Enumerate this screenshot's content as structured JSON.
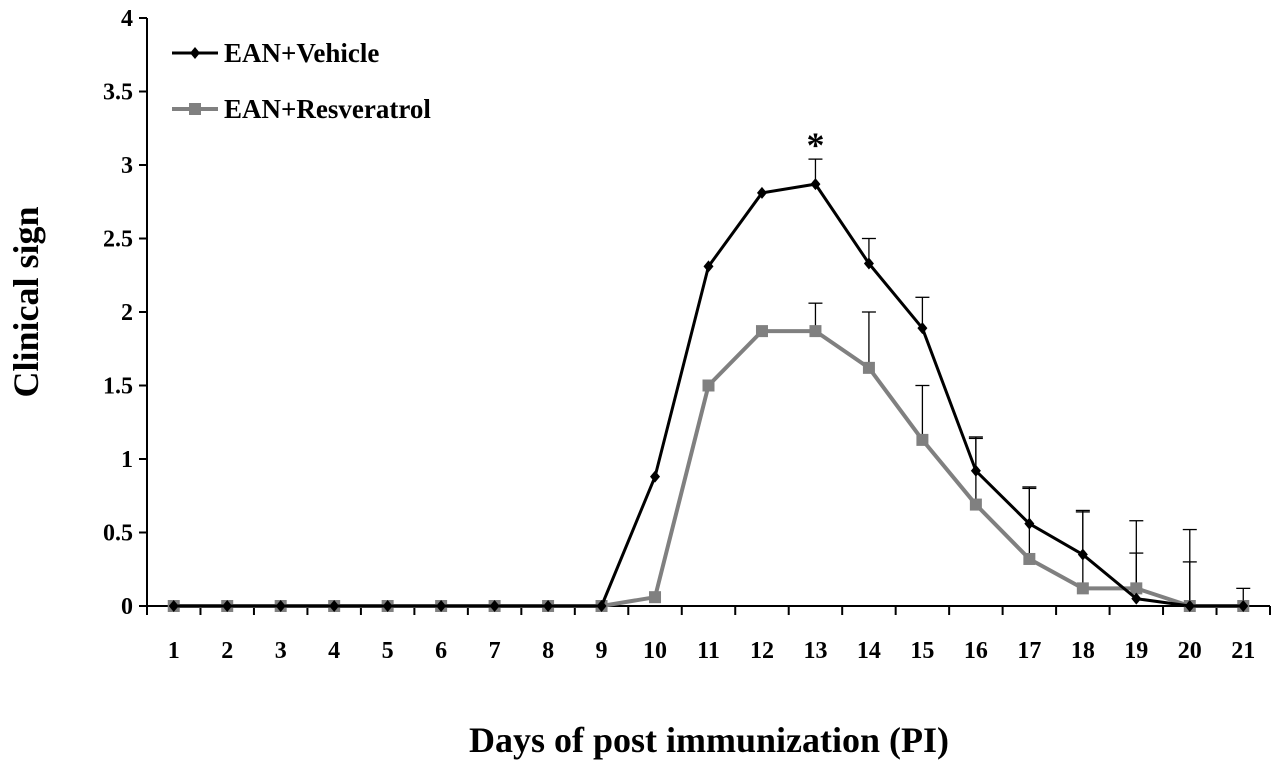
{
  "chart_data": {
    "type": "line",
    "title": "",
    "xlabel": "Days of post immunization (PI)",
    "ylabel": "Clinical sign",
    "categories": [
      "1",
      "2",
      "3",
      "4",
      "5",
      "6",
      "7",
      "8",
      "9",
      "10",
      "11",
      "12",
      "13",
      "14",
      "15",
      "16",
      "17",
      "18",
      "19",
      "20",
      "21"
    ],
    "ylim": [
      0,
      4
    ],
    "yticks": [
      "0",
      "0.5",
      "1",
      "1.5",
      "2",
      "2.5",
      "3",
      "3.5",
      "4"
    ],
    "grid": false,
    "legend": "top-left",
    "series": [
      {
        "name": "EAN+Vehicle",
        "color": "#000000",
        "marker": "diamond",
        "values": [
          0,
          0,
          0,
          0,
          0,
          0,
          0,
          0,
          0,
          0.88,
          2.31,
          2.81,
          2.87,
          2.33,
          1.89,
          0.92,
          0.56,
          0.35,
          0.05,
          0,
          0
        ],
        "error": [
          0,
          0,
          0,
          0,
          0,
          0,
          0,
          0,
          0,
          0,
          0,
          0,
          0.17,
          0.17,
          0.21,
          0.23,
          0.25,
          0.3,
          0.31,
          0.3,
          0
        ]
      },
      {
        "name": "EAN+Resveratrol",
        "color": "#808080",
        "marker": "square",
        "values": [
          0,
          0,
          0,
          0,
          0,
          0,
          0,
          0,
          0,
          0.06,
          1.5,
          1.87,
          1.87,
          1.62,
          1.13,
          0.69,
          0.32,
          0.12,
          0.12,
          0,
          0
        ],
        "error": [
          0,
          0,
          0,
          0,
          0,
          0,
          0,
          0,
          0,
          0,
          0,
          0,
          0.19,
          0.38,
          0.37,
          0.45,
          0.48,
          0.52,
          0.46,
          0.52,
          0.12
        ]
      }
    ],
    "annotations": [
      {
        "text": "*",
        "category": "13"
      }
    ]
  }
}
